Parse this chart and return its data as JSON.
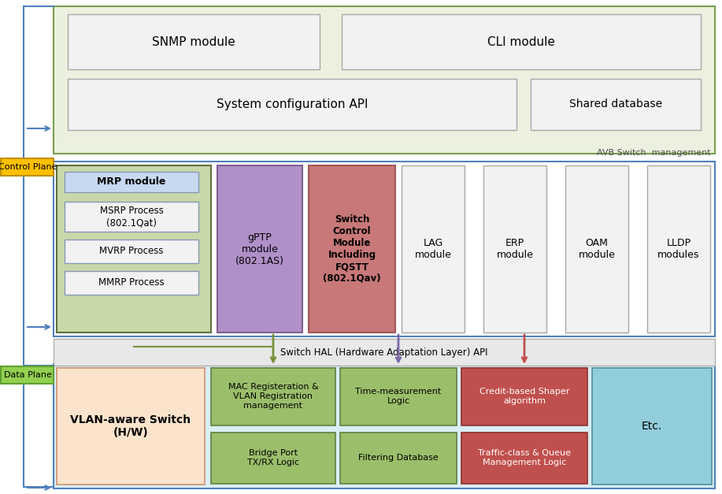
{
  "fig_width": 9.17,
  "fig_height": 6.27,
  "dpi": 100,
  "bg_color": "#ffffff",
  "colors": {
    "mrp_bg": "#c8d8a8",
    "mrp_inner": "#c8d8f0",
    "purple_box": "#b090c8",
    "pink_box": "#c87878",
    "white_box_bg": "#f2f2f2",
    "white_box_ec": "#a8a8a8",
    "light_blue_data_bg": "#daeef3",
    "peach_box": "#fce4cc",
    "green_box_data": "#9bbe6a",
    "pink_box_data": "#c0504d",
    "etc_box": "#92cddc",
    "control_plane_label_bg": "#ffc000",
    "data_plane_label_bg": "#92d050",
    "hal_bg": "#e8e8e8",
    "avb_bg": "#ebf1de",
    "avb_ec": "#7a9e4a",
    "blue_line": "#4f81bd",
    "arrow_green": "#76923c",
    "arrow_purple": "#7b69a8",
    "arrow_pink": "#c0504d",
    "mrp_ec": "#607040",
    "inner_box_ec": "#8898b8"
  },
  "labels": {
    "snmp": "SNMP module",
    "cli": "CLI module",
    "sys_config": "System configuration API",
    "shared_db": "Shared database",
    "avb_mgmt": "AVB Switch  management",
    "control_plane": "Control Plane",
    "mrp_module": "MRP module",
    "msrp": "MSRP Process\n(802.1Qat)",
    "mvrp": "MVRP Process",
    "mmrp": "MMRP Process",
    "gptp": "gPTP\nmodule\n(802.1AS)",
    "switch_ctrl": "Switch\nControl\nModule\nIncluding\nFQSTT\n(802.1Qav)",
    "lag": "LAG\nmodule",
    "erp": "ERP\nmodule",
    "oam": "OAM\nmodule",
    "lldp": "LLDP\nmodules",
    "hal": "Switch HAL (Hardware Adaptation Layer) API",
    "data_plane": "Data Plane",
    "vlan_switch": "VLAN-aware Switch\n(H/W)",
    "mac_reg": "MAC Registeration &\nVLAN Registration\nmanagement",
    "time_meas": "Time-measurement\nLogic",
    "credit_shaper": "Credit-based Shaper\nalgorithm",
    "bridge_port": "Bridge Port\nTX/RX Logic",
    "filtering_db": "Filtering Database",
    "traffic_class": "Traffic-class & Queue\nManagement Logic",
    "etc": "Etc."
  }
}
